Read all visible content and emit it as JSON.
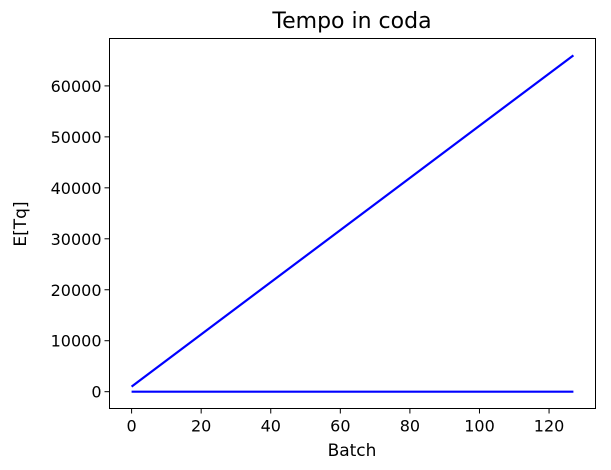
{
  "chart_data": {
    "type": "line",
    "title": "Tempo in coda",
    "xlabel": "Batch",
    "ylabel": "E[Tq]",
    "xlim": [
      -6.35,
      133.35
    ],
    "ylim": [
      -3300,
      69300
    ],
    "xticks": [
      0,
      20,
      40,
      60,
      80,
      100,
      120
    ],
    "yticks": [
      0,
      10000,
      20000,
      30000,
      40000,
      50000,
      60000
    ],
    "grid": false,
    "legend": null,
    "series": [
      {
        "color": "#0000ff",
        "x": [
          0,
          127
        ],
        "y": [
          1000,
          66000
        ]
      },
      {
        "color": "#0000ff",
        "x": [
          0,
          127
        ],
        "y": [
          0,
          0
        ]
      }
    ]
  }
}
